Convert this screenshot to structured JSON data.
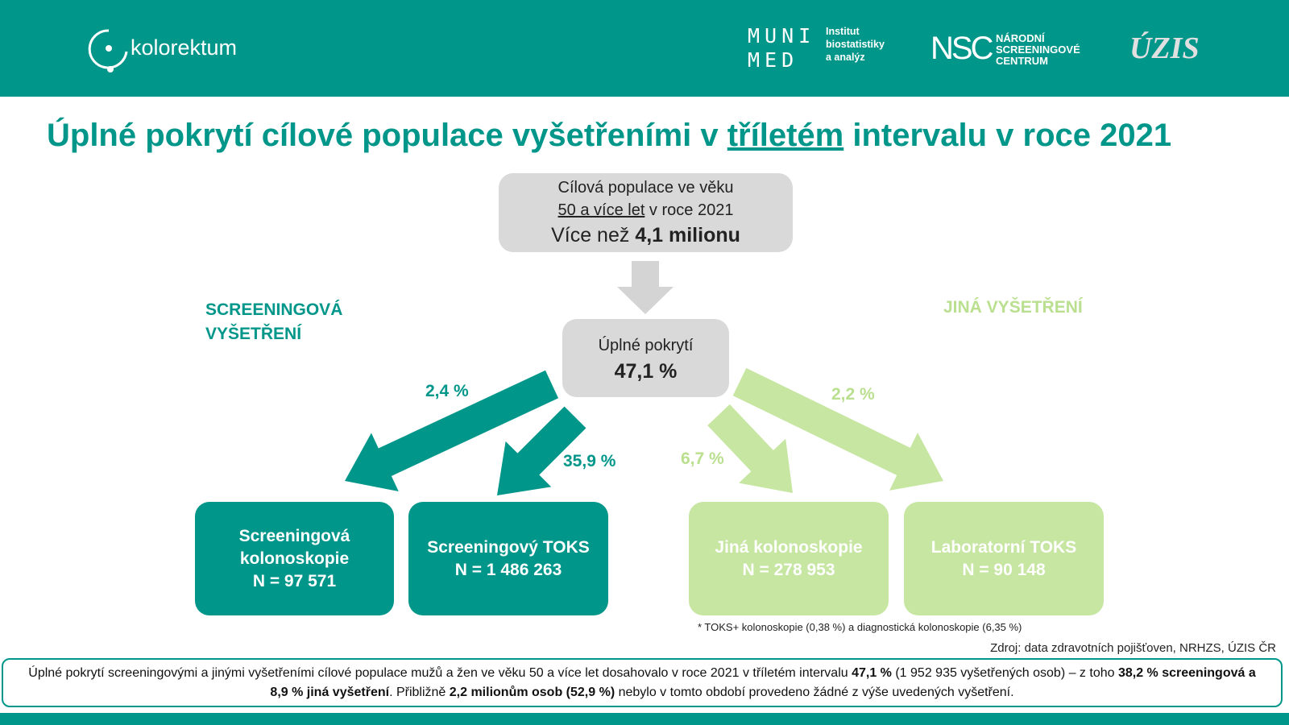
{
  "header": {
    "logo_kolorektum": "kolorektum",
    "muni_line1": "MUNI",
    "muni_line2": "MED",
    "institute": [
      "Institut",
      "biostatistiky",
      "a analýz"
    ],
    "nsc": "NSC",
    "nsc_text": [
      "NÁRODNÍ",
      "SCREENINGOVÉ",
      "CENTRUM"
    ],
    "uzis": "ÚZIS"
  },
  "title": [
    {
      "text": "Úplné pokrytí cílové populace vyšetřeními v "
    },
    {
      "text": "tříletém",
      "underline": true
    },
    {
      "text": " intervalu v roce 2021"
    }
  ],
  "population_box": {
    "line1": "Cílová populace ve věku",
    "line2": [
      {
        "text": "50 a více let",
        "underline": true
      },
      {
        "text": " v roce 2021"
      }
    ],
    "line3": [
      {
        "text": "Více než "
      },
      {
        "text": "4,1 milionu",
        "bold": true
      }
    ]
  },
  "coverage_box": {
    "label": "Úplné pokrytí",
    "value": "47,1 %"
  },
  "screening_label": [
    "SCREENINGOVÁ",
    "VYŠETŘENÍ"
  ],
  "other_label": "JINÁ VYŠETŘENÍ",
  "arrows": [
    {
      "label": "2,4 %"
    },
    {
      "label": "35,9 %"
    },
    {
      "label": "6,7 %"
    },
    {
      "label": "2,2 %"
    }
  ],
  "boxes": [
    [
      "Screeningová",
      "kolonoskopie",
      "N = 97 571"
    ],
    [
      "Screeningový TOKS",
      "N = 1 486 263"
    ],
    [
      "Jiná kolonoskopie",
      "N = 278 953"
    ],
    [
      "Laboratorní TOKS",
      "N = 90 148"
    ]
  ],
  "footnote": "* TOKS+ kolonoskopie (0,38 %) a diagnostická kolonoskopie (6,35 %)",
  "source": "Zdroj: data zdravotních pojišťoven, NRHZS, ÚZIS ČR",
  "summary": [
    {
      "text": "Úplné pokrytí screeningovými a jinými vyšetřeními cílové populace mužů a žen ve věku 50 a více let dosahovalo v roce 2021 v tříletém intervalu "
    },
    {
      "text": "47,1 %",
      "bold": true
    },
    {
      "text": " (1 952 935 vyšetřených osob) – z toho "
    },
    {
      "text": "38,2 % screeningová a 8,9 % jiná vyšetření",
      "bold": true
    },
    {
      "text": ". Přibližně "
    },
    {
      "text": "2,2 milionům osob (52,9 %)",
      "bold": true
    },
    {
      "text": " nebylo v tomto období provedeno žádné z výše uvedených vyšetření."
    }
  ]
}
